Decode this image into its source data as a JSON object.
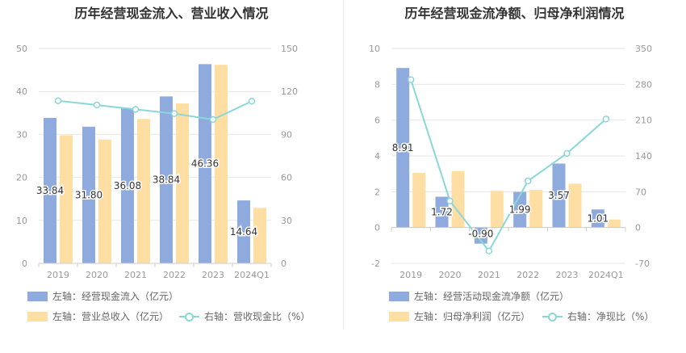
{
  "colors": {
    "bar1": "#8faadc",
    "bar2": "#ffdea3",
    "line": "#8ad7d8",
    "grid": "#e6e6e6",
    "axis": "#999999",
    "label": "#333333"
  },
  "chart_data": [
    {
      "type": "bar",
      "title": "历年经营现金流入、营业收入情况",
      "categories": [
        "2019",
        "2020",
        "2021",
        "2022",
        "2023",
        "2024Q1"
      ],
      "y_left": {
        "min": 0,
        "max": 50,
        "ticks": [
          0,
          10,
          20,
          30,
          40,
          50
        ]
      },
      "y_right": {
        "min": 0,
        "max": 150,
        "ticks": [
          0,
          30,
          60,
          90,
          120,
          150
        ]
      },
      "series": [
        {
          "name": "左轴：经营现金流入（亿元）",
          "axis": "left",
          "kind": "bar",
          "values": [
            33.84,
            31.8,
            36.08,
            38.84,
            46.36,
            14.64
          ],
          "labels": [
            "33.84",
            "31.80",
            "36.08",
            "38.84",
            "46.36",
            "14.64"
          ]
        },
        {
          "name": "左轴：营业总收入（亿元）",
          "axis": "left",
          "kind": "bar",
          "values": [
            29.8,
            28.8,
            33.6,
            37.2,
            46.2,
            12.9
          ]
        },
        {
          "name": "右轴：营收现金比（%）",
          "axis": "right",
          "kind": "line",
          "values": [
            113.5,
            110.5,
            107.5,
            104.5,
            100.4,
            113.2
          ]
        }
      ]
    },
    {
      "type": "bar",
      "title": "历年经营现金流净额、归母净利润情况",
      "categories": [
        "2019",
        "2020",
        "2021",
        "2022",
        "2023",
        "2024Q1"
      ],
      "y_left": {
        "min": -2,
        "max": 10,
        "ticks": [
          -2,
          0,
          2,
          4,
          6,
          8,
          10
        ]
      },
      "y_right": {
        "min": -70,
        "max": 350,
        "ticks": [
          -70,
          0,
          70,
          140,
          210,
          280,
          350
        ]
      },
      "series": [
        {
          "name": "左轴：经营活动现金流净额（亿元）",
          "axis": "left",
          "kind": "bar",
          "values": [
            8.91,
            1.72,
            -0.9,
            1.99,
            3.57,
            1.01
          ],
          "labels": [
            "8.91",
            "1.72",
            "-0.90",
            "1.99",
            "3.57",
            "1.01"
          ]
        },
        {
          "name": "左轴：归母净利润（亿元）",
          "axis": "left",
          "kind": "bar",
          "values": [
            3.05,
            3.15,
            2.05,
            2.1,
            2.45,
            0.45
          ]
        },
        {
          "name": "右轴：净现比（%）",
          "axis": "right",
          "kind": "line",
          "values": [
            289,
            52,
            -46,
            91,
            145,
            212
          ]
        }
      ]
    }
  ]
}
